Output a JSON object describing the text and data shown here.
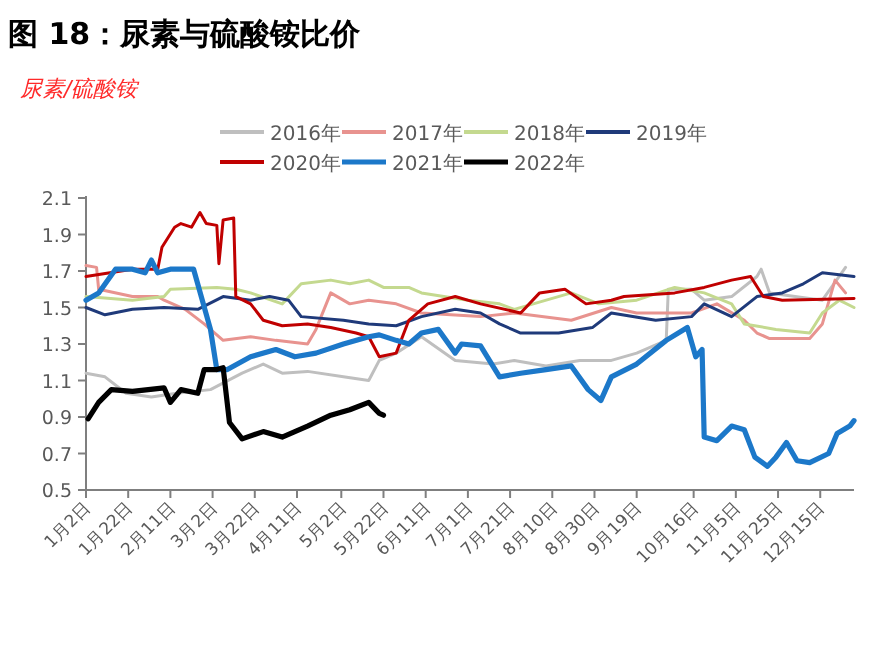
{
  "chart_data": {
    "type": "line",
    "title": "图 18：尿素与硫酸铵比价",
    "ylabel": "尿素/硫酸铵",
    "xlim": [
      "--01-02",
      "--12-31"
    ],
    "xticks": [
      {
        "value": "--01-02",
        "label": "1月2日"
      },
      {
        "value": "--01-22",
        "label": "1月22日"
      },
      {
        "value": "--02-11",
        "label": "2月11日"
      },
      {
        "value": "--03-02",
        "label": "3月2日"
      },
      {
        "value": "--03-22",
        "label": "3月22日"
      },
      {
        "value": "--04-11",
        "label": "4月11日"
      },
      {
        "value": "--05-02",
        "label": "5月2日"
      },
      {
        "value": "--05-22",
        "label": "5月22日"
      },
      {
        "value": "--06-11",
        "label": "6月11日"
      },
      {
        "value": "--07-01",
        "label": "7月1日"
      },
      {
        "value": "--07-21",
        "label": "7月21日"
      },
      {
        "value": "--08-10",
        "label": "8月10日"
      },
      {
        "value": "--08-30",
        "label": "8月30日"
      },
      {
        "value": "--09-19",
        "label": "9月19日"
      },
      {
        "value": "--10-16",
        "label": "10月16日"
      },
      {
        "value": "--11-05",
        "label": "11月5日"
      },
      {
        "value": "--11-25",
        "label": "11月25日"
      },
      {
        "value": "--12-15",
        "label": "12月15日"
      }
    ],
    "ylim": [
      0.5,
      2.1
    ],
    "yticks": [
      0.5,
      0.7,
      0.9,
      1.1,
      1.3,
      1.5,
      1.7,
      1.9,
      2.1
    ],
    "grid": false,
    "legend": "top",
    "marker": "none",
    "line_style": "solid",
    "series": [
      {
        "name": "2016年",
        "color": "#bfbfbf",
        "x": [
          "--01-02",
          "--01-11",
          "--01-21",
          "--02-02",
          "--02-14",
          "--03-01",
          "--03-16",
          "--03-26",
          "--04-04",
          "--04-16",
          "--05-03",
          "--05-15",
          "--05-20",
          "--05-28",
          "--06-09",
          "--06-25",
          "--07-13",
          "--07-23",
          "--08-07",
          "--08-23",
          "--09-07",
          "--09-19",
          "--10-03",
          "--10-04",
          "--10-15",
          "--10-21",
          "--11-03",
          "--11-15",
          "--11-17",
          "--11-21",
          "--12-16",
          "--12-27"
        ],
        "values": [
          1.14,
          1.12,
          1.03,
          1.01,
          1.03,
          1.05,
          1.14,
          1.19,
          1.14,
          1.15,
          1.12,
          1.1,
          1.21,
          1.25,
          1.34,
          1.21,
          1.19,
          1.21,
          1.18,
          1.21,
          1.21,
          1.25,
          1.32,
          1.6,
          1.6,
          1.54,
          1.56,
          1.67,
          1.71,
          1.58,
          1.54,
          1.72
        ]
      },
      {
        "name": "2017年",
        "color": "#e8938f",
        "x": [
          "--01-02",
          "--01-07",
          "--01-08",
          "--01-24",
          "--02-05",
          "--02-08",
          "--02-18",
          "--02-27",
          "--03-07",
          "--03-20",
          "--04-01",
          "--04-16",
          "--04-20",
          "--04-27",
          "--05-06",
          "--05-15",
          "--05-28",
          "--06-09",
          "--07-07",
          "--07-23",
          "--08-19",
          "--09-07",
          "--09-19",
          "--10-15",
          "--10-27",
          "--11-09",
          "--11-15",
          "--11-21",
          "--12-10",
          "--12-16",
          "--12-22",
          "--12-27"
        ],
        "values": [
          1.73,
          1.72,
          1.6,
          1.56,
          1.56,
          1.54,
          1.49,
          1.41,
          1.32,
          1.34,
          1.32,
          1.3,
          1.38,
          1.58,
          1.52,
          1.54,
          1.52,
          1.47,
          1.45,
          1.47,
          1.43,
          1.5,
          1.47,
          1.47,
          1.52,
          1.43,
          1.36,
          1.33,
          1.33,
          1.41,
          1.65,
          1.58
        ]
      },
      {
        "name": "2018年",
        "color": "#c4d98f",
        "x": [
          "--01-02",
          "--01-24",
          "--02-08",
          "--02-11",
          "--03-04",
          "--03-13",
          "--03-20",
          "--04-04",
          "--04-13",
          "--04-27",
          "--05-06",
          "--05-15",
          "--05-22",
          "--06-03",
          "--06-09",
          "--07-01",
          "--07-16",
          "--07-23",
          "--08-19",
          "--09-01",
          "--09-19",
          "--10-07",
          "--10-21",
          "--11-03",
          "--11-09",
          "--11-24",
          "--12-10",
          "--12-16",
          "--12-24",
          "--12-31"
        ],
        "values": [
          1.56,
          1.54,
          1.56,
          1.6,
          1.61,
          1.6,
          1.58,
          1.52,
          1.63,
          1.65,
          1.63,
          1.65,
          1.61,
          1.61,
          1.58,
          1.54,
          1.52,
          1.49,
          1.58,
          1.52,
          1.54,
          1.61,
          1.58,
          1.52,
          1.41,
          1.38,
          1.36,
          1.47,
          1.54,
          1.5
        ]
      },
      {
        "name": "2019年",
        "color": "#1f3a7a",
        "x": [
          "--01-02",
          "--01-11",
          "--01-24",
          "--02-08",
          "--02-24",
          "--03-07",
          "--03-20",
          "--03-29",
          "--04-07",
          "--04-13",
          "--05-03",
          "--05-15",
          "--05-28",
          "--06-09",
          "--06-25",
          "--07-07",
          "--07-16",
          "--07-26",
          "--08-13",
          "--08-29",
          "--09-07",
          "--09-28",
          "--10-15",
          "--10-21",
          "--11-03",
          "--11-15",
          "--11-27",
          "--12-07",
          "--12-16",
          "--12-24",
          "--12-31"
        ],
        "values": [
          1.5,
          1.46,
          1.49,
          1.5,
          1.49,
          1.56,
          1.54,
          1.56,
          1.54,
          1.45,
          1.43,
          1.41,
          1.4,
          1.45,
          1.49,
          1.47,
          1.41,
          1.36,
          1.36,
          1.39,
          1.47,
          1.43,
          1.45,
          1.52,
          1.45,
          1.56,
          1.58,
          1.63,
          1.69,
          1.68,
          1.67
        ]
      },
      {
        "name": "2020年",
        "color": "#c00000",
        "x": [
          "--01-02",
          "--01-24",
          "--02-05",
          "--02-07",
          "--02-13",
          "--02-16",
          "--02-21",
          "--02-25",
          "--02-28",
          "--03-04",
          "--03-05",
          "--03-07",
          "--03-12",
          "--03-13",
          "--03-20",
          "--03-26",
          "--04-04",
          "--04-16",
          "--04-27",
          "--05-09",
          "--05-15",
          "--05-20",
          "--05-28",
          "--06-03",
          "--06-12",
          "--06-25",
          "--07-07",
          "--07-26",
          "--08-04",
          "--08-16",
          "--08-26",
          "--09-07",
          "--09-13",
          "--10-07",
          "--10-21",
          "--11-03",
          "--11-12",
          "--11-18",
          "--11-27",
          "--12-31"
        ],
        "values": [
          1.67,
          1.71,
          1.71,
          1.83,
          1.94,
          1.96,
          1.94,
          2.02,
          1.96,
          1.95,
          1.74,
          1.98,
          1.99,
          1.56,
          1.52,
          1.43,
          1.4,
          1.41,
          1.39,
          1.36,
          1.34,
          1.23,
          1.25,
          1.43,
          1.52,
          1.56,
          1.52,
          1.47,
          1.58,
          1.6,
          1.52,
          1.54,
          1.56,
          1.58,
          1.61,
          1.65,
          1.67,
          1.56,
          1.54,
          1.55
        ]
      },
      {
        "name": "2021年",
        "color": "#1c78c9",
        "x": [
          "--01-02",
          "--01-08",
          "--01-16",
          "--01-24",
          "--01-30",
          "--02-02",
          "--02-05",
          "--02-11",
          "--02-22",
          "--03-01",
          "--03-04",
          "--03-09",
          "--03-20",
          "--04-01",
          "--04-10",
          "--04-20",
          "--05-03",
          "--05-15",
          "--05-20",
          "--05-28",
          "--06-03",
          "--06-09",
          "--06-17",
          "--06-25",
          "--06-28",
          "--07-07",
          "--07-16",
          "--07-26",
          "--08-07",
          "--08-19",
          "--08-27",
          "--09-02",
          "--09-07",
          "--09-19",
          "--10-03",
          "--10-13",
          "--10-17",
          "--10-20",
          "--10-21",
          "--10-27",
          "--11-03",
          "--11-09",
          "--11-14",
          "--11-20",
          "--11-24",
          "--11-29",
          "--12-04",
          "--12-10",
          "--12-19",
          "--12-23",
          "--12-29",
          "--12-31"
        ],
        "values": [
          1.54,
          1.58,
          1.71,
          1.71,
          1.69,
          1.76,
          1.69,
          1.71,
          1.71,
          1.38,
          1.16,
          1.16,
          1.23,
          1.27,
          1.23,
          1.25,
          1.3,
          1.34,
          1.35,
          1.32,
          1.3,
          1.36,
          1.38,
          1.25,
          1.3,
          1.29,
          1.12,
          1.14,
          1.16,
          1.18,
          1.05,
          0.99,
          1.12,
          1.19,
          1.32,
          1.39,
          1.23,
          1.27,
          0.79,
          0.77,
          0.85,
          0.83,
          0.68,
          0.63,
          0.68,
          0.76,
          0.66,
          0.65,
          0.7,
          0.81,
          0.85,
          0.88
        ]
      },
      {
        "name": "2022年",
        "color": "#000000",
        "x": [
          "--01-03",
          "--01-08",
          "--01-14",
          "--01-24",
          "--02-08",
          "--02-11",
          "--02-16",
          "--02-24",
          "--02-27",
          "--03-04",
          "--03-07",
          "--03-10",
          "--03-16",
          "--03-26",
          "--04-04",
          "--04-10",
          "--04-16",
          "--04-27",
          "--05-06",
          "--05-15",
          "--05-20",
          "--05-22"
        ],
        "values": [
          0.89,
          0.98,
          1.05,
          1.04,
          1.06,
          0.98,
          1.05,
          1.03,
          1.16,
          1.16,
          1.17,
          0.87,
          0.78,
          0.82,
          0.79,
          0.82,
          0.85,
          0.91,
          0.94,
          0.98,
          0.92,
          0.91
        ]
      }
    ]
  }
}
